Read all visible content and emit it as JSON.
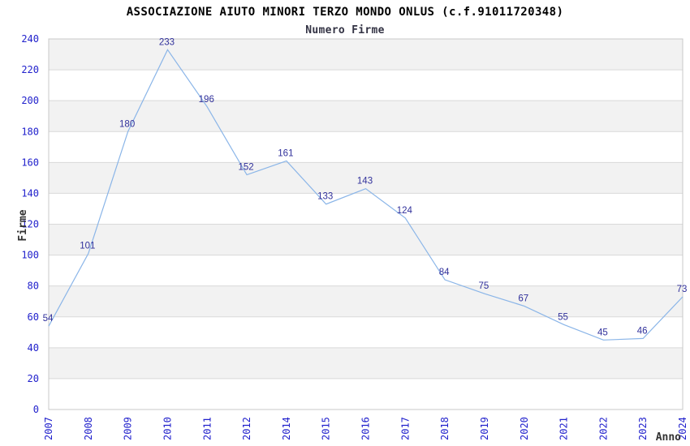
{
  "chart_data": {
    "type": "line",
    "title": "ASSOCIAZIONE AIUTO MINORI TERZO MONDO ONLUS (c.f.91011720348)",
    "subtitle": "Numero Firme",
    "xlabel": "Anno",
    "ylabel": "Firme",
    "categories": [
      "2007",
      "2008",
      "2009",
      "2010",
      "2011",
      "2012",
      "2014",
      "2015",
      "2016",
      "2017",
      "2018",
      "2019",
      "2020",
      "2021",
      "2022",
      "2023",
      "2024"
    ],
    "values": [
      54,
      101,
      180,
      233,
      196,
      152,
      161,
      133,
      143,
      124,
      84,
      75,
      67,
      55,
      45,
      46,
      73
    ],
    "ylim": [
      0,
      240
    ],
    "ytick_step": 20,
    "grid": true,
    "legend": "none",
    "x_tick_rotation": 90,
    "colors": {
      "line": "#8ab5e8",
      "data_label": "#30309b",
      "tick_label": "#2121cc",
      "title": "#000000",
      "subtitle": "#333344",
      "axis_title": "#333333",
      "band_gray": "#f2f2f2",
      "band_white": "#ffffff",
      "grid": "#d9d9d9",
      "border": "#c8c8c8",
      "background": "#ffffff"
    }
  }
}
